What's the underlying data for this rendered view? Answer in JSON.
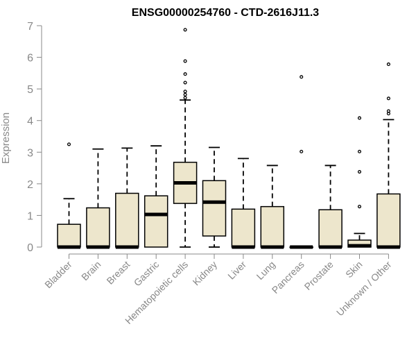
{
  "chart_data": {
    "type": "box",
    "title": "ENSG00000254760 - CTD-2616J11.3",
    "ylabel": "Expression",
    "ylim": [
      0,
      7
    ],
    "yticks": [
      0,
      1,
      2,
      3,
      4,
      5,
      6,
      7
    ],
    "box_fill": "#ede6cc",
    "categories": [
      "Bladder",
      "Brain",
      "Breast",
      "Gastric",
      "Hematopoietic cells",
      "Kidney",
      "Liver",
      "Lung",
      "Pancreas",
      "Prostate",
      "Skin",
      "Unknown / Other"
    ],
    "boxes": [
      {
        "q1": 0,
        "median": 0,
        "q3": 0.72,
        "whisker_low": 0,
        "whisker_high": 1.53,
        "outliers": [
          3.25
        ]
      },
      {
        "q1": 0,
        "median": 0,
        "q3": 1.24,
        "whisker_low": 0,
        "whisker_high": 3.1,
        "outliers": []
      },
      {
        "q1": 0,
        "median": 0,
        "q3": 1.7,
        "whisker_low": 0,
        "whisker_high": 3.13,
        "outliers": []
      },
      {
        "q1": 0,
        "median": 1.03,
        "q3": 1.62,
        "whisker_low": 0,
        "whisker_high": 3.2,
        "outliers": []
      },
      {
        "q1": 1.38,
        "median": 2.03,
        "q3": 2.68,
        "whisker_low": 0,
        "whisker_high": 4.65,
        "outliers": [
          4.72,
          4.82,
          4.92,
          5.2,
          5.47,
          5.88,
          6.87
        ]
      },
      {
        "q1": 0.35,
        "median": 1.42,
        "q3": 2.1,
        "whisker_low": 0,
        "whisker_high": 3.15,
        "outliers": []
      },
      {
        "q1": 0,
        "median": 0,
        "q3": 1.2,
        "whisker_low": 0,
        "whisker_high": 2.8,
        "outliers": []
      },
      {
        "q1": 0,
        "median": 0,
        "q3": 1.28,
        "whisker_low": 0,
        "whisker_high": 2.58,
        "outliers": []
      },
      {
        "q1": 0,
        "median": 0,
        "q3": 0,
        "whisker_low": 0,
        "whisker_high": 0,
        "outliers": [
          3.02,
          5.38
        ]
      },
      {
        "q1": 0,
        "median": 0,
        "q3": 1.18,
        "whisker_low": 0,
        "whisker_high": 2.58,
        "outliers": []
      },
      {
        "q1": 0,
        "median": 0.04,
        "q3": 0.22,
        "whisker_low": 0,
        "whisker_high": 0.43,
        "outliers": [
          1.28,
          2.38,
          3.02,
          4.08
        ]
      },
      {
        "q1": 0,
        "median": 0,
        "q3": 1.68,
        "whisker_low": 0,
        "whisker_high": 4.03,
        "outliers": [
          4.22,
          4.3,
          4.7,
          5.78
        ]
      }
    ]
  }
}
